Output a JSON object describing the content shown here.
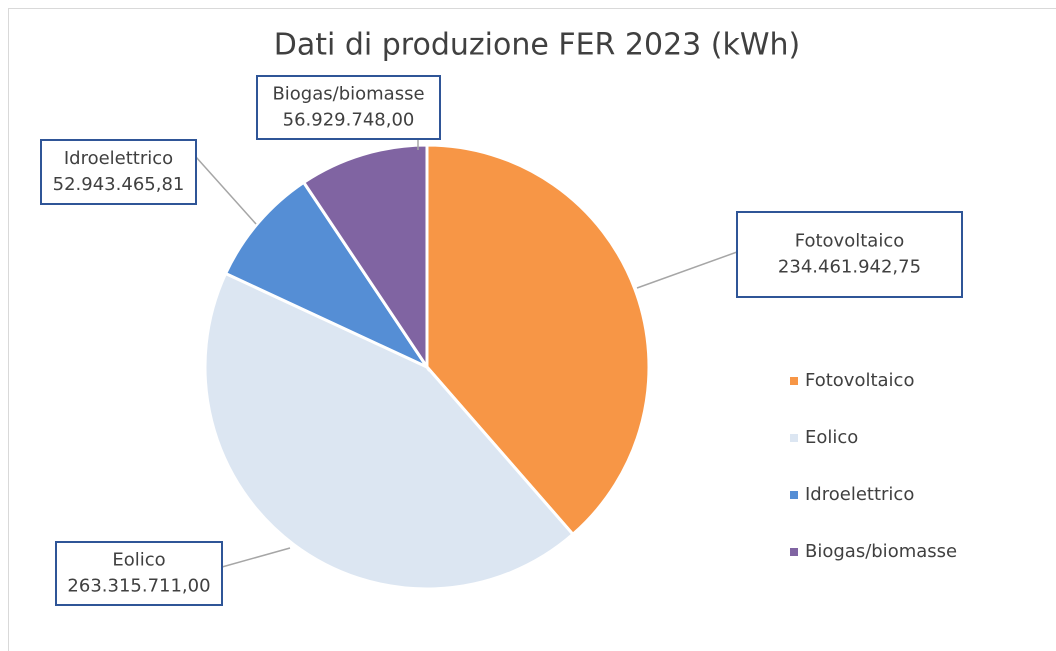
{
  "chart_data": {
    "type": "pie",
    "title": "Dati di produzione FER 2023 (kWh)",
    "categories": [
      "Fotovoltaico",
      "Eolico",
      "Idroelettrico",
      "Biogas/biomasse"
    ],
    "values": [
      234461942.75,
      263315711.0,
      52943465.81,
      56929748.0
    ],
    "value_labels": [
      "234.461.942,75",
      "263.315.711,00",
      "52.943.465,81",
      "56.929.748,00"
    ],
    "colors": [
      "#f79646",
      "#dce6f2",
      "#558ed5",
      "#8064a2"
    ],
    "legend": "right"
  }
}
